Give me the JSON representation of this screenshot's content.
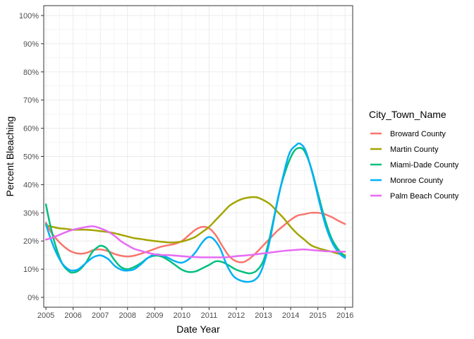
{
  "chart_data": {
    "type": "line",
    "xlabel": "Date Year",
    "ylabel": "Percent Bleaching",
    "xlim": [
      2004.92,
      2016.28
    ],
    "ylim": [
      -0.035,
      1.035
    ],
    "x_ticks": [
      2005,
      2006,
      2007,
      2008,
      2009,
      2010,
      2011,
      2012,
      2013,
      2014,
      2015,
      2016
    ],
    "x_tick_labels": [
      "2005",
      "2006",
      "2007",
      "2008",
      "2009",
      "2010",
      "2011",
      "2012",
      "2013",
      "2014",
      "2015",
      "2016"
    ],
    "y_ticks": [
      0,
      0.1,
      0.2,
      0.3,
      0.4,
      0.5,
      0.6,
      0.7,
      0.8,
      0.9,
      1.0
    ],
    "y_tick_labels": [
      "0%",
      "10%",
      "20%",
      "30%",
      "40%",
      "50%",
      "60%",
      "70%",
      "80%",
      "90%",
      "100%"
    ],
    "grid": true,
    "legend": {
      "title": "City_Town_Name",
      "placement": "right"
    },
    "series": [
      {
        "name": "Broward County",
        "color": "#F8766D",
        "points": [
          [
            2005,
            0.265
          ],
          [
            2005.2,
            0.23
          ],
          [
            2005.5,
            0.195
          ],
          [
            2005.8,
            0.17
          ],
          [
            2006.0,
            0.16
          ],
          [
            2006.25,
            0.155
          ],
          [
            2006.5,
            0.158
          ],
          [
            2006.75,
            0.168
          ],
          [
            2007.0,
            0.17
          ],
          [
            2007.25,
            0.165
          ],
          [
            2007.5,
            0.155
          ],
          [
            2007.75,
            0.148
          ],
          [
            2008.0,
            0.145
          ],
          [
            2008.25,
            0.148
          ],
          [
            2008.5,
            0.155
          ],
          [
            2008.75,
            0.163
          ],
          [
            2009.0,
            0.172
          ],
          [
            2009.25,
            0.18
          ],
          [
            2009.5,
            0.185
          ],
          [
            2009.75,
            0.19
          ],
          [
            2010.0,
            0.2
          ],
          [
            2010.25,
            0.22
          ],
          [
            2010.5,
            0.24
          ],
          [
            2010.75,
            0.25
          ],
          [
            2011.0,
            0.245
          ],
          [
            2011.25,
            0.22
          ],
          [
            2011.5,
            0.18
          ],
          [
            2011.75,
            0.145
          ],
          [
            2012.0,
            0.128
          ],
          [
            2012.25,
            0.125
          ],
          [
            2012.5,
            0.138
          ],
          [
            2012.75,
            0.16
          ],
          [
            2013.0,
            0.185
          ],
          [
            2013.25,
            0.21
          ],
          [
            2013.5,
            0.235
          ],
          [
            2013.75,
            0.255
          ],
          [
            2014.0,
            0.275
          ],
          [
            2014.25,
            0.29
          ],
          [
            2014.5,
            0.295
          ],
          [
            2014.75,
            0.3
          ],
          [
            2015.0,
            0.3
          ],
          [
            2015.25,
            0.295
          ],
          [
            2015.5,
            0.285
          ],
          [
            2015.75,
            0.272
          ],
          [
            2016.0,
            0.26
          ]
        ]
      },
      {
        "name": "Martin County",
        "color": "#A3A500",
        "points": [
          [
            2005,
            0.255
          ],
          [
            2005.25,
            0.25
          ],
          [
            2005.5,
            0.245
          ],
          [
            2005.75,
            0.243
          ],
          [
            2006.0,
            0.24
          ],
          [
            2006.25,
            0.24
          ],
          [
            2006.5,
            0.24
          ],
          [
            2006.75,
            0.238
          ],
          [
            2007.0,
            0.235
          ],
          [
            2007.25,
            0.232
          ],
          [
            2007.5,
            0.228
          ],
          [
            2007.75,
            0.222
          ],
          [
            2008.0,
            0.216
          ],
          [
            2008.25,
            0.21
          ],
          [
            2008.5,
            0.207
          ],
          [
            2008.75,
            0.203
          ],
          [
            2009.0,
            0.2
          ],
          [
            2009.25,
            0.197
          ],
          [
            2009.5,
            0.195
          ],
          [
            2009.75,
            0.195
          ],
          [
            2010.0,
            0.198
          ],
          [
            2010.25,
            0.205
          ],
          [
            2010.5,
            0.215
          ],
          [
            2010.75,
            0.232
          ],
          [
            2011.0,
            0.25
          ],
          [
            2011.25,
            0.275
          ],
          [
            2011.5,
            0.3
          ],
          [
            2011.75,
            0.325
          ],
          [
            2012.0,
            0.34
          ],
          [
            2012.25,
            0.35
          ],
          [
            2012.5,
            0.355
          ],
          [
            2012.75,
            0.355
          ],
          [
            2013.0,
            0.345
          ],
          [
            2013.25,
            0.33
          ],
          [
            2013.5,
            0.305
          ],
          [
            2013.75,
            0.28
          ],
          [
            2014.0,
            0.25
          ],
          [
            2014.25,
            0.225
          ],
          [
            2014.5,
            0.205
          ],
          [
            2014.75,
            0.185
          ],
          [
            2015.0,
            0.175
          ],
          [
            2015.25,
            0.168
          ],
          [
            2015.5,
            0.162
          ],
          [
            2015.75,
            0.155
          ],
          [
            2016.0,
            0.15
          ]
        ]
      },
      {
        "name": "Miami-Dade County",
        "color": "#00BF7D",
        "points": [
          [
            2005,
            0.33
          ],
          [
            2005.15,
            0.26
          ],
          [
            2005.35,
            0.185
          ],
          [
            2005.6,
            0.12
          ],
          [
            2005.85,
            0.092
          ],
          [
            2006.0,
            0.088
          ],
          [
            2006.2,
            0.095
          ],
          [
            2006.45,
            0.12
          ],
          [
            2006.7,
            0.16
          ],
          [
            2006.9,
            0.178
          ],
          [
            2007.05,
            0.183
          ],
          [
            2007.25,
            0.172
          ],
          [
            2007.5,
            0.135
          ],
          [
            2007.75,
            0.108
          ],
          [
            2008.0,
            0.1
          ],
          [
            2008.25,
            0.108
          ],
          [
            2008.5,
            0.122
          ],
          [
            2008.75,
            0.14
          ],
          [
            2009.0,
            0.148
          ],
          [
            2009.25,
            0.145
          ],
          [
            2009.5,
            0.132
          ],
          [
            2009.75,
            0.115
          ],
          [
            2010.0,
            0.098
          ],
          [
            2010.25,
            0.09
          ],
          [
            2010.5,
            0.092
          ],
          [
            2010.75,
            0.103
          ],
          [
            2011.0,
            0.115
          ],
          [
            2011.25,
            0.128
          ],
          [
            2011.5,
            0.125
          ],
          [
            2011.75,
            0.112
          ],
          [
            2012.0,
            0.098
          ],
          [
            2012.25,
            0.09
          ],
          [
            2012.5,
            0.085
          ],
          [
            2012.75,
            0.095
          ],
          [
            2013.0,
            0.13
          ],
          [
            2013.2,
            0.2
          ],
          [
            2013.4,
            0.29
          ],
          [
            2013.6,
            0.38
          ],
          [
            2013.85,
            0.46
          ],
          [
            2014.1,
            0.515
          ],
          [
            2014.3,
            0.53
          ],
          [
            2014.5,
            0.52
          ],
          [
            2014.75,
            0.46
          ],
          [
            2015.0,
            0.37
          ],
          [
            2015.25,
            0.28
          ],
          [
            2015.5,
            0.21
          ],
          [
            2015.75,
            0.17
          ],
          [
            2016.0,
            0.145
          ]
        ]
      },
      {
        "name": "Monroe County",
        "color": "#00B0F6",
        "points": [
          [
            2005,
            0.26
          ],
          [
            2005.15,
            0.215
          ],
          [
            2005.35,
            0.165
          ],
          [
            2005.6,
            0.12
          ],
          [
            2005.85,
            0.098
          ],
          [
            2006.0,
            0.095
          ],
          [
            2006.2,
            0.1
          ],
          [
            2006.45,
            0.12
          ],
          [
            2006.7,
            0.14
          ],
          [
            2006.9,
            0.148
          ],
          [
            2007.05,
            0.148
          ],
          [
            2007.3,
            0.135
          ],
          [
            2007.55,
            0.11
          ],
          [
            2007.8,
            0.097
          ],
          [
            2008.0,
            0.095
          ],
          [
            2008.25,
            0.1
          ],
          [
            2008.5,
            0.118
          ],
          [
            2008.75,
            0.14
          ],
          [
            2009.0,
            0.152
          ],
          [
            2009.25,
            0.15
          ],
          [
            2009.5,
            0.14
          ],
          [
            2009.75,
            0.128
          ],
          [
            2010.0,
            0.123
          ],
          [
            2010.25,
            0.135
          ],
          [
            2010.5,
            0.16
          ],
          [
            2010.75,
            0.195
          ],
          [
            2010.95,
            0.213
          ],
          [
            2011.15,
            0.208
          ],
          [
            2011.4,
            0.175
          ],
          [
            2011.65,
            0.115
          ],
          [
            2011.9,
            0.075
          ],
          [
            2012.15,
            0.06
          ],
          [
            2012.4,
            0.055
          ],
          [
            2012.65,
            0.06
          ],
          [
            2012.85,
            0.08
          ],
          [
            2013.05,
            0.13
          ],
          [
            2013.25,
            0.21
          ],
          [
            2013.45,
            0.31
          ],
          [
            2013.7,
            0.42
          ],
          [
            2013.95,
            0.51
          ],
          [
            2014.2,
            0.54
          ],
          [
            2014.35,
            0.545
          ],
          [
            2014.55,
            0.52
          ],
          [
            2014.8,
            0.44
          ],
          [
            2015.05,
            0.34
          ],
          [
            2015.3,
            0.25
          ],
          [
            2015.55,
            0.19
          ],
          [
            2015.8,
            0.155
          ],
          [
            2016.0,
            0.14
          ]
        ]
      },
      {
        "name": "Palm Beach County",
        "color": "#E76BF3",
        "points": [
          [
            2005,
            0.205
          ],
          [
            2005.25,
            0.212
          ],
          [
            2005.5,
            0.222
          ],
          [
            2005.75,
            0.232
          ],
          [
            2006.0,
            0.24
          ],
          [
            2006.25,
            0.245
          ],
          [
            2006.5,
            0.25
          ],
          [
            2006.75,
            0.252
          ],
          [
            2007.0,
            0.245
          ],
          [
            2007.25,
            0.235
          ],
          [
            2007.5,
            0.22
          ],
          [
            2007.75,
            0.2
          ],
          [
            2008.0,
            0.185
          ],
          [
            2008.25,
            0.172
          ],
          [
            2008.5,
            0.165
          ],
          [
            2008.75,
            0.158
          ],
          [
            2009.0,
            0.153
          ],
          [
            2009.25,
            0.15
          ],
          [
            2009.5,
            0.15
          ],
          [
            2009.75,
            0.148
          ],
          [
            2010.0,
            0.146
          ],
          [
            2010.25,
            0.144
          ],
          [
            2010.5,
            0.143
          ],
          [
            2010.75,
            0.142
          ],
          [
            2011.0,
            0.142
          ],
          [
            2011.25,
            0.142
          ],
          [
            2011.5,
            0.142
          ],
          [
            2011.75,
            0.143
          ],
          [
            2012.0,
            0.146
          ],
          [
            2012.25,
            0.148
          ],
          [
            2012.5,
            0.15
          ],
          [
            2012.75,
            0.153
          ],
          [
            2013.0,
            0.156
          ],
          [
            2013.25,
            0.159
          ],
          [
            2013.5,
            0.162
          ],
          [
            2013.75,
            0.165
          ],
          [
            2014.0,
            0.167
          ],
          [
            2014.25,
            0.169
          ],
          [
            2014.5,
            0.17
          ],
          [
            2014.75,
            0.168
          ],
          [
            2015.0,
            0.166
          ],
          [
            2015.25,
            0.164
          ],
          [
            2015.5,
            0.163
          ],
          [
            2015.75,
            0.162
          ],
          [
            2016.0,
            0.162
          ]
        ]
      }
    ]
  }
}
